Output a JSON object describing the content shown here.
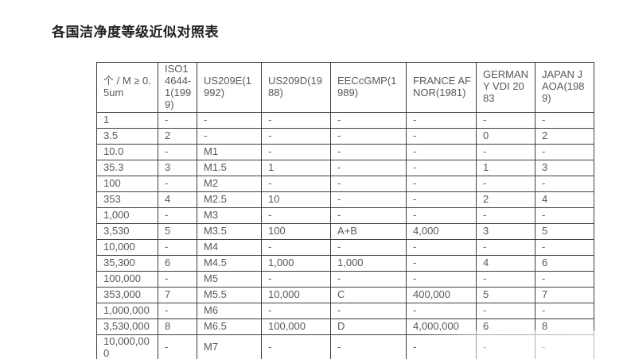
{
  "page_title": "各国洁净度等级近似对照表",
  "colors": {
    "background": "#ffffff",
    "title_text": "#1f1f1f",
    "cell_text": "#595959",
    "table_border": "#3f3f3f"
  },
  "table": {
    "columns": [
      "个 / M ≥ 0.5um",
      "ISO14644-1(1999)",
      "US209E(1992)",
      "US209D(1988)",
      "EECcGMP(1989)",
      "FRANCE AFNOR(1981)",
      "GERMANY VDI 2083",
      "JAPAN JAOA(1989)"
    ],
    "rows": [
      [
        "1",
        "-",
        "-",
        "-",
        "-",
        "-",
        "-",
        "-"
      ],
      [
        "3.5",
        "2",
        "-",
        "-",
        "-",
        "-",
        "0",
        "2"
      ],
      [
        "10.0",
        "-",
        "M1",
        "-",
        "-",
        "-",
        "-",
        "-"
      ],
      [
        "35.3",
        "3",
        "M1.5",
        "1",
        "-",
        "-",
        "1",
        "3"
      ],
      [
        "100",
        "-",
        "M2",
        "-",
        "-",
        "-",
        "-",
        "-"
      ],
      [
        "353",
        "4",
        "M2.5",
        "10",
        "-",
        "-",
        "2",
        "4"
      ],
      [
        "1,000",
        "-",
        "M3",
        "-",
        "-",
        "-",
        "-",
        "-"
      ],
      [
        "3,530",
        "5",
        "M3.5",
        "100",
        "A+B",
        "4,000",
        "3",
        "5"
      ],
      [
        "10,000",
        "-",
        "M4",
        "-",
        "-",
        "-",
        "-",
        "-"
      ],
      [
        "35,300",
        "6",
        "M4.5",
        "1,000",
        "1,000",
        "-",
        "4",
        "6"
      ],
      [
        "100,000",
        "-",
        "M5",
        "-",
        "-",
        "-",
        "-",
        "-"
      ],
      [
        "353,000",
        "7",
        "M5.5",
        "10,000",
        "C",
        "400,000",
        "5",
        "7"
      ],
      [
        "1,000,000",
        "-",
        "M6",
        "-",
        "-",
        "-",
        "-",
        "-"
      ],
      [
        "3,530,000",
        "8",
        "M6.5",
        "100,000",
        "D",
        "4,000,000",
        "6",
        "8"
      ],
      [
        "10,000,000",
        "-",
        "M7",
        "-",
        "-",
        "-",
        "-",
        "-"
      ]
    ]
  }
}
